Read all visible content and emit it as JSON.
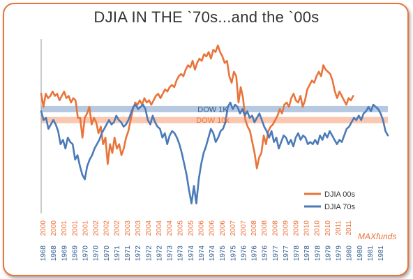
{
  "chart_data": {
    "type": "line",
    "title": "DJIA IN THE `70s...and the `00s",
    "xlabel": "",
    "ylabel": "",
    "watermark": "MAXfunds",
    "x_ticks_top": [
      "2000",
      "2000",
      "2001",
      "2001",
      "2001",
      "2002",
      "2002",
      "2002",
      "2003",
      "2003",
      "2004",
      "2004",
      "2004",
      "2005",
      "2005",
      "2006",
      "2006",
      "2006",
      "2007",
      "2007",
      "2008",
      "2008",
      "2008",
      "2009",
      "2009",
      "2010",
      "2010",
      "2010",
      "2011",
      "2011"
    ],
    "x_ticks_bottom": [
      "1968",
      "1968",
      "1969",
      "1969",
      "1970",
      "1970",
      "1970",
      "1971",
      "1971",
      "1972",
      "1972",
      "1972",
      "1973",
      "1973",
      "1974",
      "1974",
      "1974",
      "1975",
      "1975",
      "1976",
      "1976",
      "1976",
      "1977",
      "1977",
      "1978",
      "1978",
      "1978",
      "1979",
      "1979",
      "1980",
      "1980",
      "1981",
      "1981"
    ],
    "bands": [
      {
        "name": "DOW 1K",
        "center": 0.0,
        "color": "#aec3de",
        "text_color": "#2e5a8e"
      },
      {
        "name": "DOW 10k",
        "center": -0.5,
        "color": "#f9c2a8",
        "text_color": "#e8743b"
      }
    ],
    "ylim": [
      -4.5,
      3.0
    ],
    "series": [
      {
        "name": "DJIA 00s",
        "color": "#e8743b",
        "x": [
          0,
          1,
          2,
          3,
          4,
          5,
          6,
          7,
          8,
          9,
          10,
          11,
          12,
          13,
          14,
          15,
          16,
          17,
          18,
          19,
          20,
          21,
          22,
          23,
          24,
          25,
          26,
          27,
          28,
          29,
          30,
          31,
          32,
          33,
          34,
          35,
          36,
          37,
          38,
          39,
          40,
          41,
          42,
          43,
          44,
          45,
          46,
          47,
          48,
          49,
          50,
          51,
          52,
          53,
          54,
          55,
          56,
          57,
          58,
          59,
          60,
          61,
          62,
          63,
          64,
          65,
          66,
          67,
          68,
          69,
          70,
          71,
          72,
          73,
          74,
          75,
          76,
          77,
          78,
          79,
          80,
          81,
          82,
          83,
          84,
          85,
          86,
          87,
          88,
          89,
          90,
          91,
          92,
          93,
          94,
          95,
          96,
          97,
          98,
          99,
          100,
          101,
          102,
          103,
          104,
          105,
          106,
          107,
          108,
          109,
          110,
          111,
          112,
          113,
          114,
          115,
          116,
          117,
          118,
          119,
          120,
          121,
          122,
          123,
          124,
          125,
          126,
          127,
          128,
          129,
          130,
          131,
          132,
          133,
          134,
          135,
          136
        ],
        "values": [
          0.7,
          0.1,
          0.7,
          0.5,
          0.6,
          0.8,
          0.6,
          0.7,
          0.4,
          0.6,
          0.8,
          0.5,
          0.6,
          0.3,
          0.5,
          0.4,
          -0.4,
          -0.4,
          -1.3,
          -0.4,
          -0.2,
          0.1,
          -0.7,
          -0.4,
          -0.6,
          -1.1,
          -0.8,
          -1.6,
          -1.3,
          -2.5,
          -1.6,
          -2.0,
          -1.3,
          -1.8,
          -1.6,
          -2.1,
          -1.8,
          -1.3,
          -1.0,
          -0.5,
          0.0,
          0.3,
          0.2,
          0.4,
          0.2,
          0.5,
          0.3,
          0.4,
          0.2,
          0.4,
          0.6,
          0.7,
          0.5,
          0.7,
          0.9,
          0.8,
          1.0,
          1.1,
          1.0,
          1.3,
          1.5,
          1.6,
          1.5,
          1.8,
          2.0,
          1.9,
          2.2,
          1.8,
          2.1,
          2.3,
          2.2,
          2.5,
          2.4,
          2.6,
          2.3,
          2.7,
          2.6,
          2.9,
          2.6,
          2.4,
          2.1,
          2.2,
          1.5,
          1.2,
          1.7,
          1.5,
          0.3,
          1.0,
          0.5,
          -0.5,
          -0.8,
          -1.0,
          -1.5,
          -2.0,
          -2.7,
          -2.2,
          -2.0,
          -1.2,
          -1.6,
          -1.0,
          -0.8,
          -0.7,
          -0.5,
          -0.3,
          0.0,
          -0.2,
          0.2,
          0.3,
          0.1,
          0.5,
          0.7,
          0.4,
          0.3,
          0.6,
          0.1,
          0.4,
          0.9,
          1.1,
          1.3,
          1.2,
          1.5,
          1.7,
          1.5,
          2.0,
          1.8,
          1.7,
          1.6,
          1.3,
          0.8,
          0.5,
          0.8,
          0.6,
          0.4,
          0.2,
          0.5,
          0.4,
          0.6
        ]
      },
      {
        "name": "DJIA 70s",
        "color": "#4a7ab8",
        "x": [
          0,
          1,
          2,
          3,
          4,
          5,
          6,
          7,
          8,
          9,
          10,
          11,
          12,
          13,
          14,
          15,
          16,
          17,
          18,
          19,
          20,
          21,
          22,
          23,
          24,
          25,
          26,
          27,
          28,
          29,
          30,
          31,
          32,
          33,
          34,
          35,
          36,
          37,
          38,
          39,
          40,
          41,
          42,
          43,
          44,
          45,
          46,
          47,
          48,
          49,
          50,
          51,
          52,
          53,
          54,
          55,
          56,
          57,
          58,
          59,
          60,
          61,
          62,
          63,
          64,
          65,
          66,
          67,
          68,
          69,
          70,
          71,
          72,
          73,
          74,
          75,
          76,
          77,
          78,
          79,
          80,
          81,
          82,
          83,
          84,
          85,
          86,
          87,
          88,
          89,
          90,
          91,
          92,
          93,
          94,
          95,
          96,
          97,
          98,
          99,
          100,
          101,
          102,
          103,
          104,
          105,
          106,
          107,
          108,
          109,
          110,
          111,
          112,
          113,
          114,
          115,
          116,
          117,
          118,
          119,
          120,
          121,
          122,
          123,
          124,
          125,
          126,
          127,
          128,
          129,
          130,
          131,
          132,
          133,
          134,
          135,
          136,
          137,
          138,
          139,
          140,
          141,
          142,
          143
        ],
        "values": [
          -0.1,
          -0.5,
          -0.4,
          -0.9,
          -0.7,
          -0.5,
          -0.7,
          -1.0,
          -1.6,
          -1.4,
          -1.8,
          -1.3,
          -1.5,
          -1.6,
          -2.3,
          -2.1,
          -2.6,
          -3.0,
          -3.2,
          -2.6,
          -2.3,
          -2.1,
          -1.8,
          -1.6,
          -1.4,
          -1.1,
          -0.9,
          -0.7,
          -0.5,
          -0.7,
          -0.6,
          -0.3,
          -0.5,
          -0.6,
          -0.8,
          -0.7,
          -0.5,
          -0.2,
          0.1,
          0.2,
          0.0,
          0.1,
          0.2,
          0.0,
          -0.5,
          -0.7,
          -0.3,
          -0.6,
          -0.8,
          -0.9,
          -1.3,
          -1.1,
          -1.6,
          -1.2,
          -1.0,
          -1.1,
          -1.3,
          -1.6,
          -2.0,
          -2.5,
          -3.0,
          -3.7,
          -4.3,
          -3.5,
          -4.3,
          -3.2,
          -2.5,
          -2.0,
          -1.7,
          -1.3,
          -0.9,
          -1.1,
          -1.5,
          -1.3,
          -1.0,
          -0.9,
          -0.6,
          0.1,
          0.3,
          0.0,
          0.2,
          0.1,
          -0.2,
          0.0,
          -0.3,
          -0.1,
          -0.4,
          -0.3,
          -0.6,
          -0.4,
          -0.2,
          -0.5,
          -0.8,
          -1.0,
          -1.3,
          -1.0,
          -1.5,
          -1.3,
          -1.8,
          -1.5,
          -1.2,
          -1.3,
          -1.6,
          -1.4,
          -1.7,
          -1.3,
          -1.1,
          -1.4,
          -1.2,
          -1.3,
          -1.6,
          -1.5,
          -1.6,
          -1.4,
          -1.6,
          -1.2,
          -1.4,
          -1.1,
          -1.3,
          -1.0,
          -1.2,
          -1.4,
          -1.6,
          -1.4,
          -1.5,
          -1.2,
          -0.9,
          -0.8,
          -0.6,
          -0.4,
          -0.5,
          -0.3,
          -0.5,
          -0.2,
          -0.1,
          0.1,
          -0.1,
          0.2,
          0.1,
          0.0,
          -0.2,
          -0.5,
          -1.0,
          -1.2
        ]
      }
    ]
  }
}
